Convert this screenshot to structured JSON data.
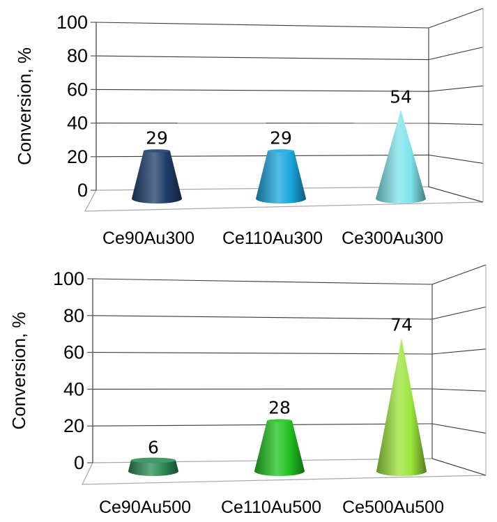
{
  "chart_data": [
    {
      "type": "bar",
      "style": "3d-cone",
      "ylabel": "Conversion, %",
      "ylim": [
        0,
        100
      ],
      "yticks": [
        "0",
        "20",
        "40",
        "60",
        "80",
        "100"
      ],
      "categories": [
        "Ce90Au300",
        "Ce110Au300",
        "Ce300Au300"
      ],
      "values": [
        29,
        29,
        54
      ],
      "value_labels": [
        "29",
        "29",
        "54"
      ],
      "shapes": [
        "frustum",
        "frustum",
        "cone"
      ],
      "colors": [
        "#1f3d6b",
        "#1aa6dc",
        "#7fe3ec"
      ],
      "grid": true,
      "legend": "none"
    },
    {
      "type": "bar",
      "style": "3d-cone",
      "ylabel": "Conversion, %",
      "ylim": [
        0,
        100
      ],
      "yticks": [
        "0",
        "20",
        "40",
        "60",
        "80",
        "100"
      ],
      "categories": [
        "Ce90Au500",
        "Ce110Au500",
        "Ce500Au500"
      ],
      "values": [
        6,
        28,
        74
      ],
      "value_labels": [
        "6",
        "28",
        "74"
      ],
      "shapes": [
        "frustum",
        "frustum",
        "cone"
      ],
      "colors": [
        "#2e8b57",
        "#1fc31f",
        "#9be33a"
      ],
      "grid": true,
      "legend": "none"
    }
  ]
}
